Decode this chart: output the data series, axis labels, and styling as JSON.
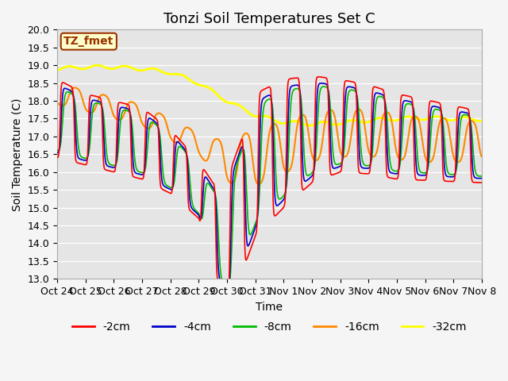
{
  "title": "Tonzi Soil Temperatures Set C",
  "xlabel": "Time",
  "ylabel": "Soil Temperature (C)",
  "ylim": [
    13.0,
    20.0
  ],
  "yticks": [
    13.0,
    13.5,
    14.0,
    14.5,
    15.0,
    15.5,
    16.0,
    16.5,
    17.0,
    17.5,
    18.0,
    18.5,
    19.0,
    19.5,
    20.0
  ],
  "xtick_labels": [
    "Oct 24",
    "Oct 25",
    "Oct 26",
    "Oct 27",
    "Oct 28",
    "Oct 29",
    "Oct 30",
    "Oct 31",
    "Nov 1",
    "Nov 2",
    "Nov 3",
    "Nov 4",
    "Nov 5",
    "Nov 6",
    "Nov 7",
    "Nov 8"
  ],
  "colors": {
    "-2cm": "#ff0000",
    "-4cm": "#0000cc",
    "-8cm": "#00bb00",
    "-16cm": "#ff8800",
    "-32cm": "#ffff00"
  },
  "legend_labels": [
    "-2cm",
    "-4cm",
    "-8cm",
    "-16cm",
    "-32cm"
  ],
  "bg_color": "#e5e5e5",
  "fig_bg_color": "#f5f5f5",
  "label_box_text": "TZ_fmet",
  "label_box_bg": "#ffffcc",
  "label_box_edge": "#993300",
  "title_fontsize": 13,
  "axis_label_fontsize": 10,
  "tick_fontsize": 9,
  "legend_fontsize": 10,
  "linewidth_thin": 1.2,
  "linewidth_thick": 2.0
}
